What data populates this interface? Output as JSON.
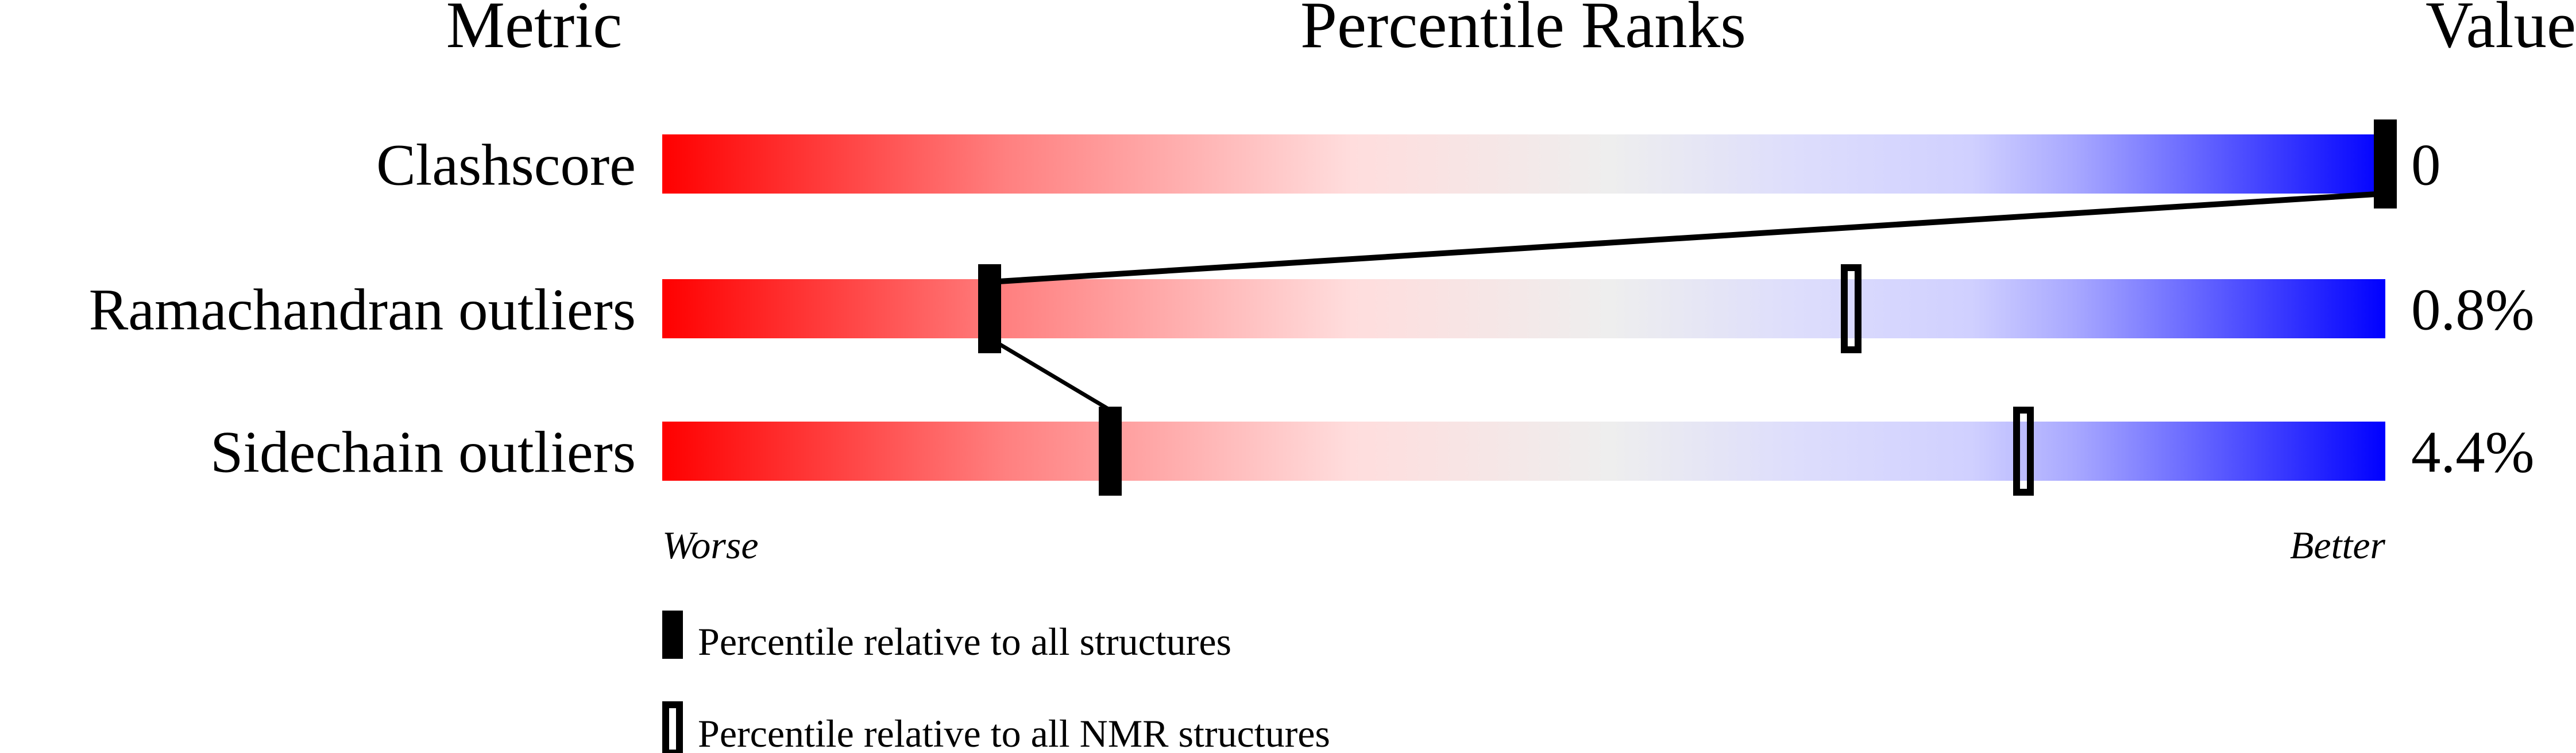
{
  "chart_data": {
    "type": "percentile-bar",
    "headers": {
      "metric": "Metric",
      "ranks": "Percentile Ranks",
      "value": "Value"
    },
    "xlim": [
      0,
      100
    ],
    "axis_labels": {
      "left": "Worse",
      "right": "Better"
    },
    "gradient_colors": [
      "#ff0000",
      "#ff8080",
      "#ffdddd",
      "#eeeeee",
      "#ddddff",
      "#a8a8ff",
      "#0000ff"
    ],
    "rows": [
      {
        "metric": "Clashscore",
        "value": "0",
        "percentile_all": 100,
        "percentile_nmr": null
      },
      {
        "metric": "Ramachandran outliers",
        "value": "0.8%",
        "percentile_all": 19,
        "percentile_nmr": 69
      },
      {
        "metric": "Sidechain outliers",
        "value": "4.4%",
        "percentile_all": 26,
        "percentile_nmr": 79
      }
    ],
    "legend": [
      {
        "marker": "filled",
        "label": "Percentile relative to all structures"
      },
      {
        "marker": "open",
        "label": "Percentile relative to all NMR structures"
      }
    ]
  }
}
